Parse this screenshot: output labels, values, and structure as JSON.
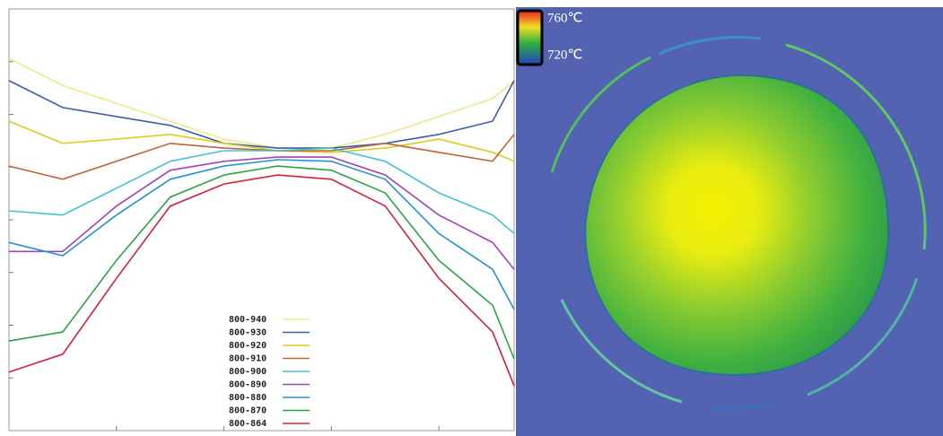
{
  "chart_data": {
    "type": "line",
    "x": [
      0,
      0.5,
      1,
      1.5,
      2,
      2.5,
      3,
      3.5,
      4,
      4.5,
      4.7
    ],
    "xlim": [
      0,
      4.7
    ],
    "xticks": [
      1,
      2,
      3,
      4
    ],
    "ylim": [
      0,
      8
    ],
    "yticks": [
      1,
      2,
      3,
      4,
      5,
      6,
      7
    ],
    "series": [
      {
        "name": "800-940",
        "color": "#f2e88a",
        "values": [
          7.06,
          6.55,
          6.21,
          5.87,
          5.53,
          5.36,
          5.36,
          5.62,
          5.96,
          6.3,
          6.64
        ]
      },
      {
        "name": "800-930",
        "color": "#3b5ea6",
        "values": [
          6.64,
          6.13,
          5.96,
          5.79,
          5.45,
          5.36,
          5.36,
          5.45,
          5.62,
          5.87,
          6.64
        ]
      },
      {
        "name": "800-920",
        "color": "#d6cf1e",
        "values": [
          5.87,
          5.45,
          5.53,
          5.62,
          5.45,
          5.31,
          5.28,
          5.36,
          5.53,
          5.28,
          5.11
        ]
      },
      {
        "name": "800-910",
        "color": "#c0623a",
        "values": [
          5.02,
          4.77,
          5.11,
          5.45,
          5.36,
          5.31,
          5.31,
          5.45,
          5.28,
          5.11,
          5.62
        ]
      },
      {
        "name": "800-900",
        "color": "#45c2cf",
        "values": [
          4.17,
          4.09,
          4.6,
          5.11,
          5.31,
          5.31,
          5.36,
          5.11,
          4.51,
          4.09,
          3.74
        ]
      },
      {
        "name": "800-890",
        "color": "#a044b4",
        "values": [
          3.4,
          3.4,
          4.26,
          4.94,
          5.11,
          5.19,
          5.19,
          4.85,
          4.09,
          3.57,
          3.06
        ]
      },
      {
        "name": "800-880",
        "color": "#2293d2",
        "values": [
          3.57,
          3.32,
          4.09,
          4.77,
          5.02,
          5.14,
          5.11,
          4.77,
          3.74,
          3.06,
          2.3
        ]
      },
      {
        "name": "800-870",
        "color": "#2fa244",
        "values": [
          1.7,
          1.87,
          3.23,
          4.43,
          4.85,
          5.02,
          4.94,
          4.51,
          3.23,
          2.38,
          1.36
        ]
      },
      {
        "name": "800-864",
        "color": "#d3203f",
        "values": [
          1.11,
          1.45,
          2.89,
          4.26,
          4.68,
          4.85,
          4.77,
          4.26,
          2.89,
          1.87,
          0.85
        ]
      }
    ]
  },
  "thermal_image": {
    "colorbar_max": "760℃",
    "colorbar_min": "720℃"
  }
}
